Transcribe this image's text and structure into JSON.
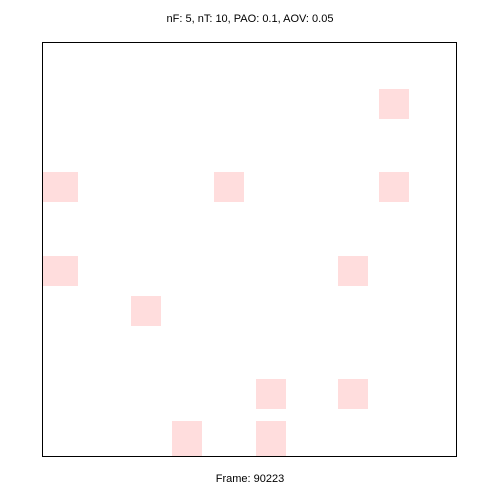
{
  "header": {
    "params_text": "nF: 5, nT: 10, PAO: 0.1, AOV: 0.05"
  },
  "footer": {
    "frame_text": "Frame: 90223"
  },
  "colors": {
    "cell_fill": "#ffdddd",
    "border": "#000000",
    "background": "#ffffff"
  }
}
